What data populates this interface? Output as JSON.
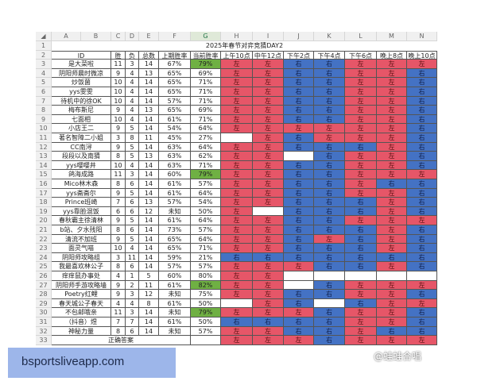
{
  "colors": {
    "left": "#e65668",
    "right": "#4472c4",
    "highlight": "#6fb043"
  },
  "column_letters": [
    "A",
    "B",
    "C",
    "D",
    "E",
    "F",
    "G",
    "H",
    "I",
    "J",
    "K",
    "L",
    "M",
    "N"
  ],
  "title": "2025年春节对弈竞猜DAY2",
  "headers": [
    "ID",
    "胜",
    "负",
    "总数",
    "上期胜率",
    "当前胜率",
    "上午10点",
    "中午12点",
    "下午2点",
    "下午4点",
    "下午6点",
    "晚上8点",
    "晚上10点"
  ],
  "rows": [
    {
      "id": "是大菜啦",
      "w": "11",
      "l": "3",
      "t": "14",
      "prev": "67%",
      "cur": "79%",
      "hl": true,
      "picks": [
        "左",
        "左",
        "右",
        "右",
        "左",
        "左",
        "左"
      ]
    },
    {
      "id": "阴阳师晨时微凉",
      "w": "9",
      "l": "4",
      "t": "13",
      "prev": "65%",
      "cur": "69%",
      "picks": [
        "左",
        "左",
        "右",
        "右",
        "左",
        "左",
        "右"
      ]
    },
    {
      "id": "炒饭菌",
      "w": "10",
      "l": "4",
      "t": "14",
      "prev": "65%",
      "cur": "71%",
      "picks": [
        "左",
        "左",
        "右",
        "右",
        "左",
        "左",
        "右"
      ]
    },
    {
      "id": "yys雯雯",
      "w": "10",
      "l": "4",
      "t": "14",
      "prev": "65%",
      "cur": "71%",
      "picks": [
        "左",
        "左",
        "右",
        "右",
        "左",
        "左",
        "右"
      ]
    },
    {
      "id": "待机中的徐OK",
      "w": "10",
      "l": "4",
      "t": "14",
      "prev": "57%",
      "cur": "71%",
      "picks": [
        "左",
        "左",
        "右",
        "右",
        "左",
        "左",
        "右"
      ]
    },
    {
      "id": "梅布斯尼",
      "w": "9",
      "l": "4",
      "t": "13",
      "prev": "65%",
      "cur": "69%",
      "picks": [
        "左",
        "左",
        "右",
        "右",
        "左",
        "左",
        "右"
      ]
    },
    {
      "id": "七面相",
      "w": "10",
      "l": "4",
      "t": "14",
      "prev": "61%",
      "cur": "71%",
      "picks": [
        "左",
        "左",
        "右",
        "右",
        "左",
        "左",
        "右"
      ]
    },
    {
      "id": "小店王二",
      "w": "9",
      "l": "5",
      "t": "14",
      "prev": "54%",
      "cur": "64%",
      "picks": [
        "左",
        "左",
        "左",
        "左",
        "左",
        "左",
        "右"
      ]
    },
    {
      "id": "著名智障二小姐",
      "w": "3",
      "l": "8",
      "t": "11",
      "prev": "45%",
      "cur": "27%",
      "picks": [
        "",
        "左",
        "右",
        "左",
        "左",
        "左",
        "右"
      ]
    },
    {
      "id": "CC南浔",
      "w": "9",
      "l": "5",
      "t": "14",
      "prev": "63%",
      "cur": "64%",
      "picks": [
        "左",
        "左",
        "右",
        "右",
        "右",
        "左",
        "右"
      ]
    },
    {
      "id": "段段以及南猜",
      "w": "8",
      "l": "5",
      "t": "13",
      "prev": "63%",
      "cur": "62%",
      "picks": [
        "左",
        "左",
        "",
        "右",
        "左",
        "左",
        "右"
      ]
    },
    {
      "id": "yys嘤嘤井",
      "w": "10",
      "l": "4",
      "t": "14",
      "prev": "63%",
      "cur": "71%",
      "picks": [
        "左",
        "左",
        "右",
        "右",
        "左",
        "左",
        "右"
      ]
    },
    {
      "id": "鸽海成路",
      "w": "11",
      "l": "3",
      "t": "14",
      "prev": "60%",
      "cur": "79%",
      "hl": true,
      "picks": [
        "左",
        "左",
        "右",
        "右",
        "左",
        "左",
        "左"
      ]
    },
    {
      "id": "Mico林木森",
      "w": "8",
      "l": "6",
      "t": "14",
      "prev": "61%",
      "cur": "57%",
      "picks": [
        "左",
        "左",
        "右",
        "右",
        "左",
        "右",
        "右"
      ]
    },
    {
      "id": "yys斋斋尔",
      "w": "9",
      "l": "5",
      "t": "14",
      "prev": "61%",
      "cur": "64%",
      "picks": [
        "左",
        "左",
        "右",
        "右",
        "左",
        "左",
        "右"
      ]
    },
    {
      "id": "Prince班崎",
      "w": "7",
      "l": "6",
      "t": "13",
      "prev": "57%",
      "cur": "54%",
      "picks": [
        "左",
        "左",
        "右",
        "右",
        "右",
        "左",
        "右"
      ]
    },
    {
      "id": "yys靠脸混饭",
      "w": "6",
      "l": "6",
      "t": "12",
      "prev": "未知",
      "cur": "50%",
      "picks": [
        "左",
        "",
        "右",
        "右",
        "右",
        "左",
        "右"
      ]
    },
    {
      "id": "春秋霸主徐清林",
      "w": "9",
      "l": "5",
      "t": "14",
      "prev": "61%",
      "cur": "64%",
      "picks": [
        "左",
        "左",
        "右",
        "右",
        "左",
        "左",
        "左"
      ]
    },
    {
      "id": "b站、夕水残阳",
      "w": "8",
      "l": "6",
      "t": "14",
      "prev": "73%",
      "cur": "57%",
      "picks": [
        "左",
        "左",
        "右",
        "右",
        "右",
        "左",
        "右"
      ]
    },
    {
      "id": "清流不加班",
      "w": "9",
      "l": "5",
      "t": "14",
      "prev": "65%",
      "cur": "64%",
      "picks": [
        "左",
        "左",
        "右",
        "左",
        "右",
        "左",
        "右"
      ]
    },
    {
      "id": "面灵气喵",
      "w": "10",
      "l": "4",
      "t": "14",
      "prev": "65%",
      "cur": "71%",
      "picks": [
        "左",
        "左",
        "右",
        "右",
        "右",
        "左",
        "右"
      ]
    },
    {
      "id": "阴阳师攻略组",
      "w": "3",
      "l": "11",
      "t": "14",
      "prev": "59%",
      "cur": "21%",
      "picks": [
        "右",
        "右",
        "右",
        "右",
        "右",
        "右",
        "右"
      ]
    },
    {
      "id": "我最喜欢林公子",
      "w": "8",
      "l": "6",
      "t": "14",
      "prev": "57%",
      "cur": "57%",
      "picks": [
        "左",
        "左",
        "左",
        "右",
        "右",
        "左",
        "右"
      ]
    },
    {
      "id": "痒痒鼠办事处",
      "w": "4",
      "l": "1",
      "t": "5",
      "prev": "60%",
      "cur": "80%",
      "picks": [
        "左",
        "左",
        "",
        "",
        "",
        "",
        ""
      ]
    },
    {
      "id": "阴阳师手游攻略墙",
      "w": "9",
      "l": "2",
      "t": "11",
      "prev": "61%",
      "cur": "82%",
      "hl": true,
      "picks": [
        "左",
        "左",
        "",
        "右",
        "左",
        "左",
        "左"
      ]
    },
    {
      "id": "Poetry红鲤",
      "w": "9",
      "l": "3",
      "t": "12",
      "prev": "未知",
      "cur": "75%",
      "picks": [
        "左",
        "左",
        "右",
        "右",
        "左",
        "左",
        "右"
      ]
    },
    {
      "id": "春天城公子春天",
      "w": "4",
      "l": "4",
      "t": "8",
      "prev": "61%",
      "cur": "50%",
      "picks": [
        "",
        "左",
        "右",
        "",
        "右",
        "左",
        "左"
      ]
    },
    {
      "id": "不包邮哦亲",
      "w": "11",
      "l": "3",
      "t": "14",
      "prev": "未知",
      "cur": "79%",
      "hl": true,
      "picks": [
        "左",
        "左",
        "左",
        "右",
        "左",
        "左",
        "右"
      ]
    },
    {
      "id": "（抖音）煜",
      "w": "7",
      "l": "7",
      "t": "14",
      "prev": "61%",
      "cur": "50%",
      "picks": [
        "右",
        "右",
        "右",
        "右",
        "左",
        "左",
        "右"
      ]
    },
    {
      "id": "神秘力量",
      "w": "8",
      "l": "6",
      "t": "14",
      "prev": "未知",
      "cur": "57%",
      "picks": [
        "左",
        "左",
        "右",
        "右",
        "左",
        "右",
        "右"
      ]
    }
  ],
  "answer_row": {
    "label": "正确答案",
    "picks": [
      "左",
      "左",
      "左",
      "右",
      "左",
      "左",
      "左"
    ]
  },
  "watermarks": {
    "site": "bsportsliveapp.com",
    "weibo": "@蛙蛙合唱"
  }
}
